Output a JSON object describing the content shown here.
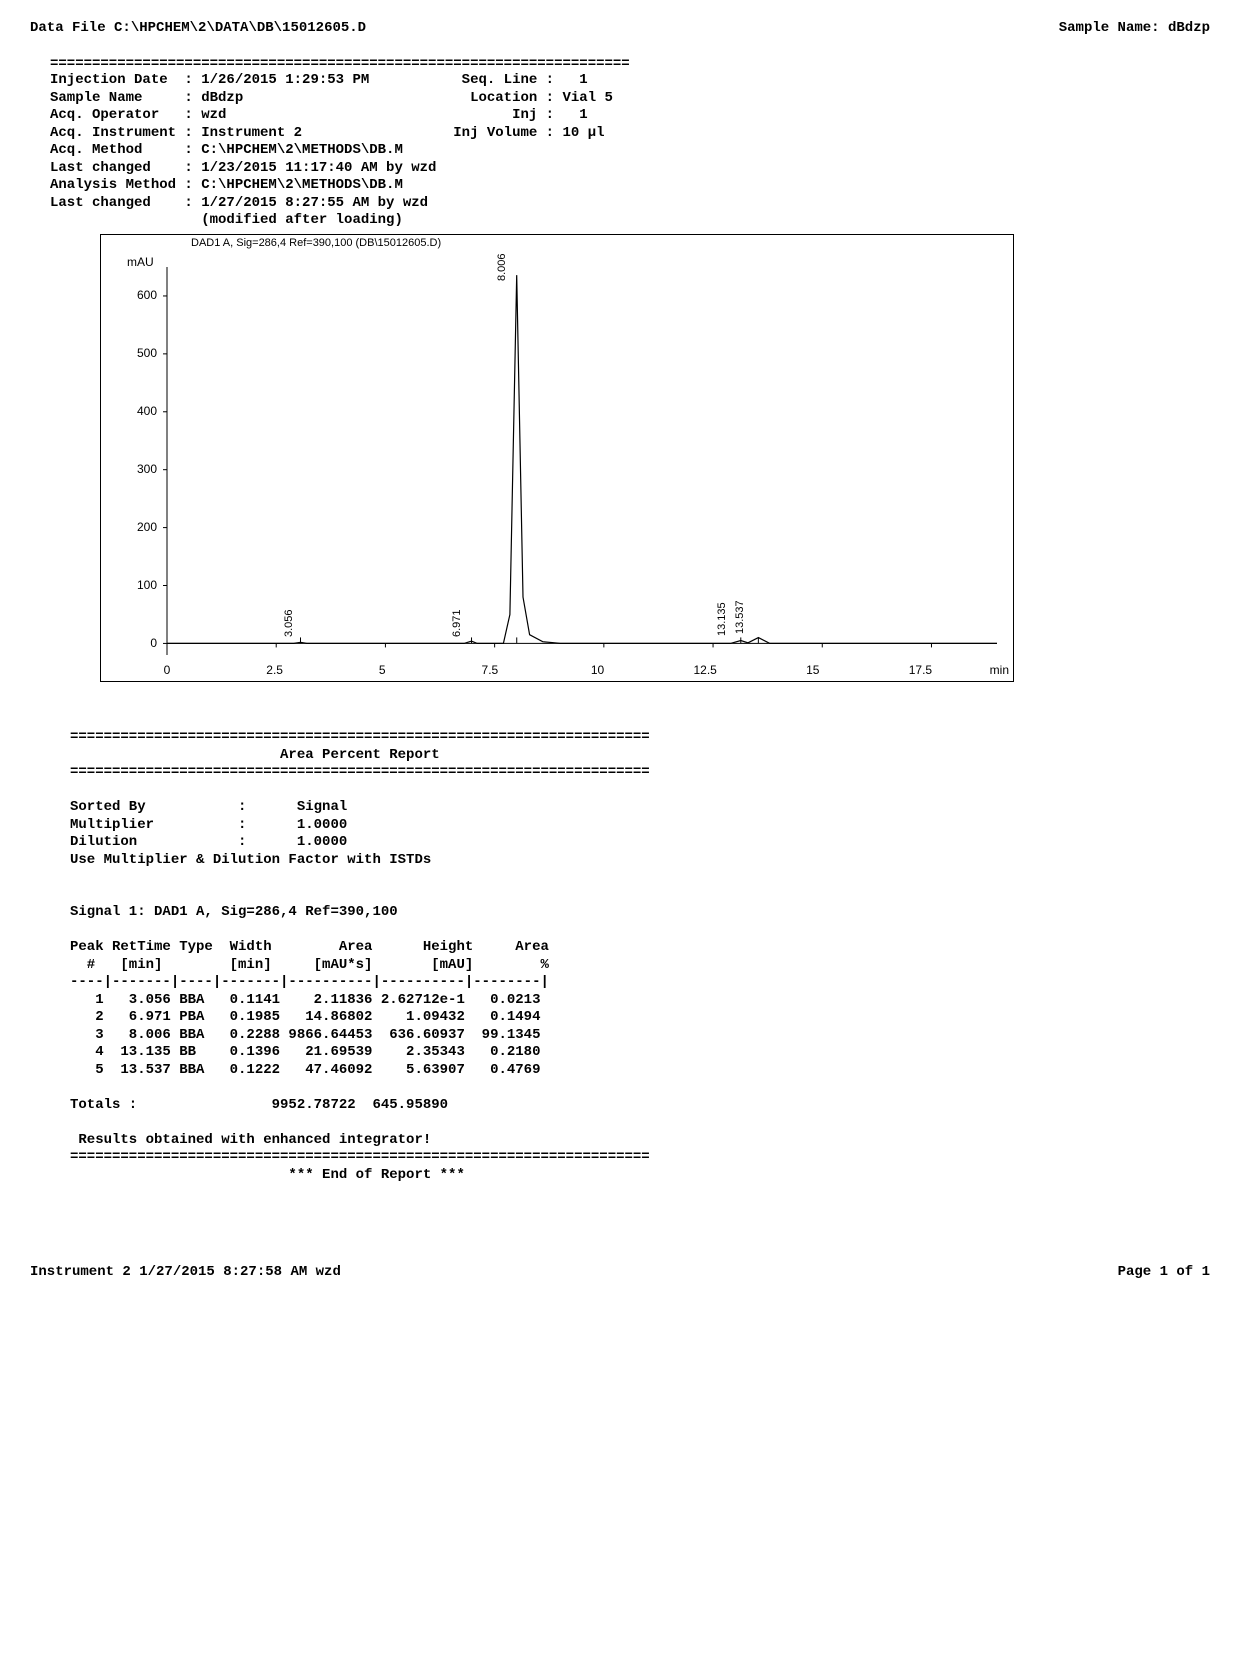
{
  "header": {
    "data_file_label": "Data File",
    "data_file": "C:\\HPCHEM\\2\\DATA\\DB\\15012605.D",
    "sample_name_label": "Sample Name:",
    "sample_name": "dBdzp"
  },
  "meta_left_labels": {
    "injection_date": "Injection Date",
    "sample_name": "Sample Name",
    "acq_operator": "Acq. Operator",
    "acq_instrument": "Acq. Instrument",
    "acq_method": "Acq. Method",
    "last_changed1": "Last changed",
    "analysis_method": "Analysis Method",
    "last_changed2": "Last changed",
    "modified": "(modified after loading)"
  },
  "meta_left_values": {
    "injection_date": "1/26/2015 1:29:53 PM",
    "sample_name": "dBdzp",
    "acq_operator": "wzd",
    "acq_instrument": "Instrument 2",
    "acq_method": "C:\\HPCHEM\\2\\METHODS\\DB.M",
    "last_changed1": "1/23/2015 11:17:40 AM by wzd",
    "analysis_method": "C:\\HPCHEM\\2\\METHODS\\DB.M",
    "last_changed2": "1/27/2015 8:27:55 AM by wzd"
  },
  "meta_right_labels": {
    "seq_line": "Seq. Line :",
    "location": "Location :",
    "inj": "Inj :",
    "inj_volume": "Inj Volume :"
  },
  "meta_right_values": {
    "seq_line": "1",
    "location": "Vial 5",
    "inj": "1",
    "inj_volume": "10 µl"
  },
  "chart": {
    "title": "DAD1 A, Sig=286,4 Ref=390,100 (DB\\15012605.D)",
    "yaxis_label": "mAU",
    "xaxis_label": "min",
    "ylim": [
      -20,
      650
    ],
    "yticks": [
      0,
      100,
      200,
      300,
      400,
      500,
      600
    ],
    "xlim": [
      0,
      19
    ],
    "xticks": [
      0,
      2.5,
      5,
      7.5,
      10,
      12.5,
      15,
      17.5
    ],
    "line_color": "#000000",
    "background": "#ffffff",
    "peaks": [
      {
        "rt": 3.056,
        "height": 0.26,
        "label": "3.056"
      },
      {
        "rt": 6.971,
        "height": 1.09,
        "label": "6.971"
      },
      {
        "rt": 8.006,
        "height": 636.6,
        "label": "8.006"
      },
      {
        "rt": 13.135,
        "height": 2.35,
        "label": "13.135"
      },
      {
        "rt": 13.537,
        "height": 5.64,
        "label": "13.537"
      }
    ],
    "baseline": 0,
    "trace": [
      [
        0,
        0
      ],
      [
        2.9,
        0
      ],
      [
        3.056,
        2
      ],
      [
        3.2,
        0
      ],
      [
        6.8,
        0
      ],
      [
        6.971,
        4
      ],
      [
        7.1,
        0
      ],
      [
        7.7,
        0
      ],
      [
        7.85,
        50
      ],
      [
        8.006,
        636
      ],
      [
        8.15,
        80
      ],
      [
        8.3,
        15
      ],
      [
        8.6,
        3
      ],
      [
        9.0,
        0
      ],
      [
        12.9,
        0
      ],
      [
        13.135,
        5
      ],
      [
        13.3,
        1
      ],
      [
        13.537,
        10
      ],
      [
        13.8,
        0
      ],
      [
        19,
        0
      ]
    ]
  },
  "area_report": {
    "title": "Area Percent Report",
    "sorted_by_label": "Sorted By",
    "sorted_by": "Signal",
    "multiplier_label": "Multiplier",
    "multiplier": "1.0000",
    "dilution_label": "Dilution",
    "dilution": "1.0000",
    "istd_note": "Use Multiplier & Dilution Factor with ISTDs",
    "signal_line": "Signal 1: DAD1 A, Sig=286,4 Ref=390,100",
    "col_headers": {
      "peak": "Peak",
      "rettime": "RetTime",
      "type": "Type",
      "width": "Width",
      "area": "Area",
      "height": "Height",
      "areapct": "Area"
    },
    "col_units": {
      "peak": "#",
      "rettime": "[min]",
      "type": "",
      "width": "[min]",
      "area": "[mAU*s]",
      "height": "[mAU]",
      "areapct": "%"
    },
    "rows": [
      {
        "n": "1",
        "rt": "3.056",
        "type": "BBA",
        "w": "0.1141",
        "a": "2.11836",
        "h": "2.62712e-1",
        "ap": "0.0213"
      },
      {
        "n": "2",
        "rt": "6.971",
        "type": "PBA",
        "w": "0.1985",
        "a": "14.86802",
        "h": "1.09432",
        "ap": "0.1494"
      },
      {
        "n": "3",
        "rt": "8.006",
        "type": "BBA",
        "w": "0.2288",
        "a": "9866.64453",
        "h": "636.60937",
        "ap": "99.1345"
      },
      {
        "n": "4",
        "rt": "13.135",
        "type": "BB",
        "w": "0.1396",
        "a": "21.69539",
        "h": "2.35343",
        "ap": "0.2180"
      },
      {
        "n": "5",
        "rt": "13.537",
        "type": "BBA",
        "w": "0.1222",
        "a": "47.46092",
        "h": "5.63907",
        "ap": "0.4769"
      }
    ],
    "totals_label": "Totals :",
    "totals_area": "9952.78722",
    "totals_height": "645.95890",
    "enhanced_note": "Results obtained with enhanced integrator!",
    "end_report": "*** End of Report ***"
  },
  "footer": {
    "left": "Instrument 2 1/27/2015 8:27:58 AM wzd",
    "right": "Page 1 of 1"
  },
  "sep_line": "====================================================================="
}
